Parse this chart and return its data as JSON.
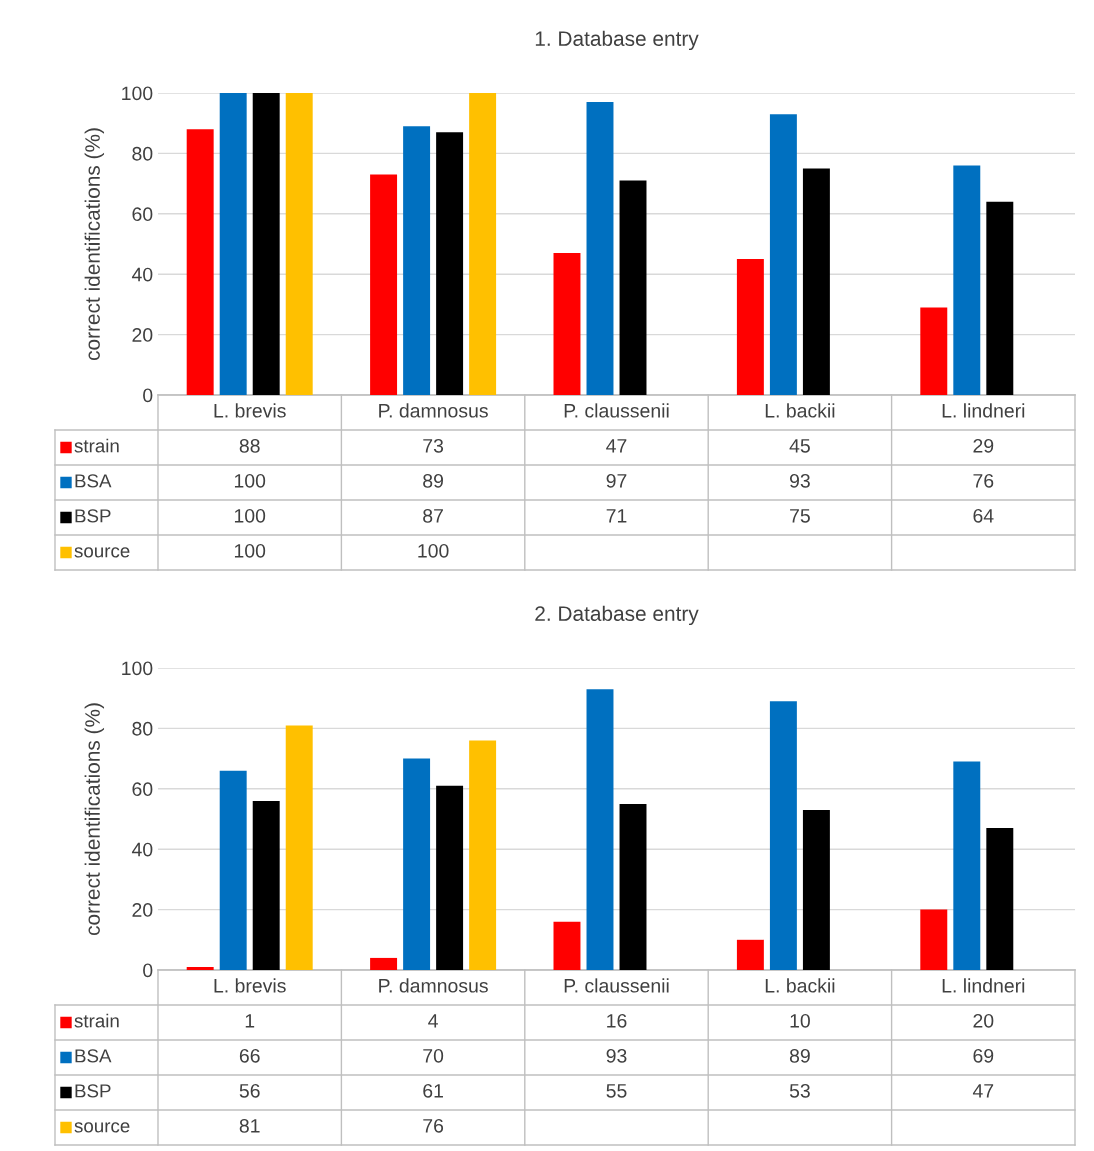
{
  "chart_data": [
    {
      "type": "bar",
      "title": "1. Database entry",
      "legend": "bottom left",
      "ylabel": "correct identifications (%)",
      "categories": [
        "L. brevis",
        "P. damnosus",
        "P. claussenii",
        "L. backii",
        "L. lindneri"
      ],
      "ylim": [
        0,
        100
      ],
      "yticks": [
        0,
        20,
        40,
        60,
        80,
        100
      ],
      "grid": "y",
      "data_labels": true,
      "series": [
        {
          "name": "strain",
          "color": "#ff0000",
          "values": [
            88,
            73,
            47,
            45,
            29
          ]
        },
        {
          "name": "BSA",
          "color": "#0070c0",
          "values": [
            100,
            89,
            97,
            93,
            76
          ]
        },
        {
          "name": "BSP",
          "color": "#000000",
          "values": [
            100,
            87,
            71,
            75,
            64
          ]
        },
        {
          "name": "source",
          "color": "#ffc000",
          "values": [
            100,
            100,
            null,
            null,
            null
          ]
        }
      ]
    },
    {
      "type": "bar",
      "title": "2. Database entry",
      "legend": "bottom left",
      "ylabel": "correct identifications (%)",
      "categories": [
        "L. brevis",
        "P. damnosus",
        "P. claussenii",
        "L. backii",
        "L. lindneri"
      ],
      "ylim": [
        0,
        100
      ],
      "yticks": [
        0,
        20,
        40,
        60,
        80,
        100
      ],
      "grid": "y",
      "data_labels": true,
      "series": [
        {
          "name": "strain",
          "color": "#ff0000",
          "values": [
            1,
            4,
            16,
            10,
            20
          ]
        },
        {
          "name": "BSA",
          "color": "#0070c0",
          "values": [
            66,
            70,
            93,
            89,
            69
          ]
        },
        {
          "name": "BSP",
          "color": "#000000",
          "values": [
            56,
            61,
            55,
            53,
            47
          ]
        },
        {
          "name": "source",
          "color": "#ffc000",
          "values": [
            81,
            76,
            null,
            null,
            null
          ]
        }
      ]
    }
  ]
}
